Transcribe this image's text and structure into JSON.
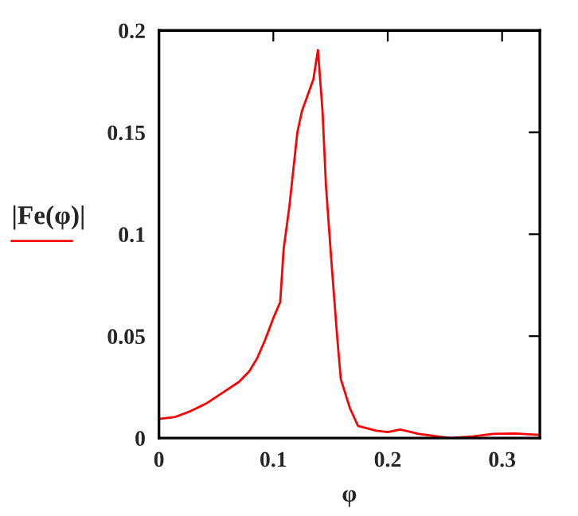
{
  "chart_data": {
    "type": "line",
    "xlabel": "φ",
    "ylabel": "|Fe(φ)|",
    "x": [
      0,
      0.0144,
      0.028,
      0.042,
      0.056,
      0.07,
      0.079,
      0.086,
      0.093,
      0.1,
      0.106,
      0.109,
      0.114,
      0.121,
      0.125,
      0.135,
      0.139,
      0.143,
      0.146,
      0.151,
      0.156,
      0.159,
      0.167,
      0.174,
      0.19,
      0.2,
      0.211,
      0.227,
      0.241,
      0.255,
      0.274,
      0.292,
      0.311,
      0.332
    ],
    "series": [
      {
        "color": "#ff0000",
        "values": [
          0.0094,
          0.0104,
          0.0133,
          0.0172,
          0.0224,
          0.0276,
          0.0328,
          0.0393,
          0.0484,
          0.0589,
          0.0667,
          0.0927,
          0.1135,
          0.15,
          0.1604,
          0.176,
          0.1904,
          0.1604,
          0.124,
          0.0849,
          0.0484,
          0.0289,
          0.0146,
          0.006,
          0.0036,
          0.0029,
          0.0042,
          0.0021,
          0.001,
          0,
          0.0008,
          0.0021,
          0.0023,
          0.0016
        ]
      }
    ],
    "xlim": [
      0,
      0.333
    ],
    "ylim": [
      0,
      0.2
    ],
    "xticks": [
      0,
      0.1,
      0.2,
      0.3
    ],
    "yticks": [
      0,
      0.05,
      0.1,
      0.15,
      0.2
    ],
    "grid": false,
    "marker": "none",
    "line_style": "solid"
  }
}
